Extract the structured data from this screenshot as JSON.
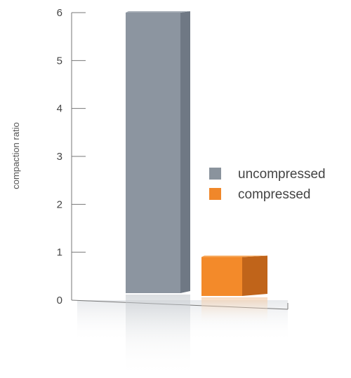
{
  "chart_data": {
    "type": "bar",
    "categories": [
      "uncompressed",
      "compressed"
    ],
    "values": [
      6,
      0.9
    ],
    "title": "",
    "xlabel": "",
    "ylabel": "compaction ratio",
    "ylim": [
      0,
      6
    ],
    "yticks": [
      "0",
      "1",
      "2",
      "3",
      "4",
      "5",
      "6"
    ],
    "grid": false,
    "legend_position": "right",
    "series": [
      {
        "name": "uncompressed",
        "color": "#8a939d"
      },
      {
        "name": "compressed",
        "color": "#f0872a"
      }
    ]
  }
}
